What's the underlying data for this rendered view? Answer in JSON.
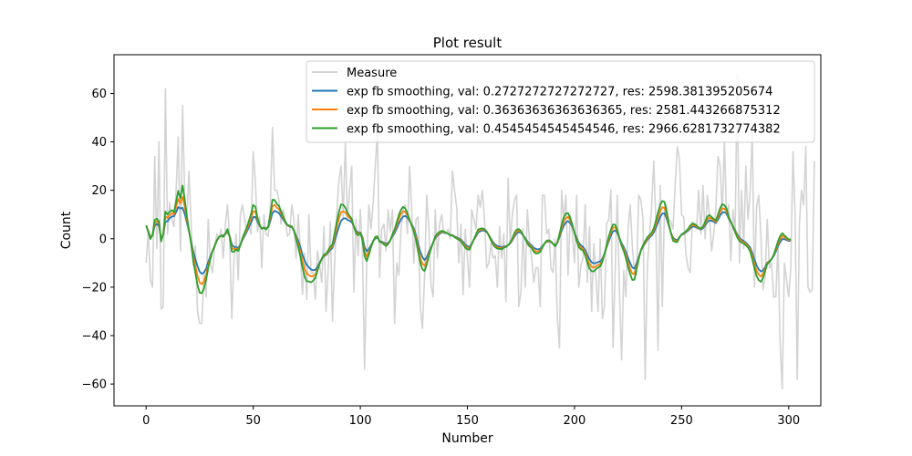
{
  "chart_data": {
    "type": "line",
    "title": "Plot result",
    "xlabel": "Number",
    "ylabel": "Count",
    "xlim": [
      -15,
      315
    ],
    "ylim": [
      -69,
      76
    ],
    "xticks": [
      0,
      50,
      100,
      150,
      200,
      250,
      300
    ],
    "yticks": [
      -60,
      -40,
      -20,
      0,
      20,
      40,
      60
    ],
    "grid": false,
    "legend_position": "top-right",
    "series": [
      {
        "name": "Measure",
        "color": "#d3d3d3",
        "y": [
          -10,
          3,
          -17,
          -20,
          34,
          -4,
          40,
          -29,
          -28,
          62,
          2,
          15,
          8,
          5,
          20,
          42,
          -5,
          55,
          18,
          8,
          28,
          6,
          -11,
          -3,
          -30,
          -35,
          -35,
          -14,
          -24,
          8,
          -10,
          -14,
          -4,
          2,
          0,
          4,
          -8,
          6,
          14,
          0,
          -33,
          -9,
          2,
          -17,
          10,
          14,
          8,
          3,
          5,
          2,
          36,
          24,
          3,
          9,
          -12,
          10,
          2,
          1,
          14,
          46,
          20,
          20,
          16,
          6,
          12,
          8,
          1,
          2,
          14,
          8,
          -8,
          10,
          -5,
          -23,
          -6,
          -25,
          10,
          -14,
          -14,
          -25,
          -5,
          -11,
          -18,
          5,
          -30,
          -13,
          7,
          -34,
          -10,
          10,
          24,
          30,
          8,
          40,
          8,
          20,
          30,
          -22,
          8,
          -7,
          12,
          -5,
          -54,
          -10,
          14,
          4,
          15,
          30,
          44,
          -16,
          4,
          6,
          -5,
          12,
          3,
          12,
          -35,
          -10,
          -15,
          4,
          12,
          14,
          2,
          30,
          12,
          -10,
          8,
          9,
          -28,
          -37,
          -16,
          18,
          5,
          -19,
          -24,
          12,
          -8,
          6,
          10,
          2,
          2,
          4,
          0,
          28,
          20,
          13,
          -10,
          6,
          -23,
          4,
          -8,
          -20,
          12,
          8,
          4,
          18,
          13,
          20,
          8,
          -12,
          -10,
          -2,
          -8,
          -7,
          -20,
          5,
          -8,
          2,
          -26,
          25,
          -2,
          10,
          16,
          18,
          -28,
          -22,
          4,
          -20,
          12,
          -1,
          -8,
          -18,
          -12,
          -12,
          -28,
          18,
          18,
          2,
          4,
          -12,
          -14,
          0,
          -33,
          -45,
          20,
          8,
          18,
          -15,
          10,
          2,
          -10,
          18,
          -20,
          -11,
          -8,
          14,
          -18,
          5,
          -30,
          -2,
          -16,
          -30,
          0,
          -33,
          -28,
          6,
          8,
          20,
          -45,
          -13,
          18,
          -22,
          -50,
          -13,
          -24,
          4,
          14,
          -3,
          -14,
          -15,
          18,
          16,
          8,
          -58,
          -12,
          1,
          13,
          32,
          6,
          -46,
          22,
          -28,
          12,
          14,
          8,
          7,
          4,
          22,
          38,
          33,
          10,
          9,
          -6,
          -12,
          -14,
          7,
          5,
          4,
          20,
          2,
          22,
          0,
          18,
          10,
          -5,
          2,
          12,
          34,
          30,
          10,
          40,
          10,
          14,
          -9,
          12,
          2,
          68,
          -10,
          20,
          -4,
          30,
          8,
          19,
          44,
          -20,
          13,
          18,
          2,
          -21,
          -16,
          8,
          -12,
          -10,
          -24,
          -24,
          -2,
          -43,
          -62,
          -10,
          -17,
          -24,
          -12,
          36,
          10,
          -58,
          6,
          20,
          14,
          38,
          -20,
          -22,
          -21,
          32
        ]
      },
      {
        "name": "exp fb smoothing, val: 0.2727272727272727, res: 2598.381395205674",
        "color": "#1f77b4",
        "y": [
          5.5,
          3.3,
          0.8,
          1.3,
          5.4,
          6.1,
          5.3,
          0.2,
          1.6,
          7.2,
          7.2,
          8.5,
          9.2,
          9.3,
          11.0,
          13.1,
          12.5,
          12.8,
          10.3,
          6.8,
          3.0,
          -1.3,
          -5.2,
          -8.4,
          -11.3,
          -13.6,
          -14.5,
          -13.9,
          -12.4,
          -9.6,
          -7.1,
          -5.1,
          -3.0,
          -0.9,
          0.6,
          1.3,
          1.4,
          2.0,
          2.7,
          1.2,
          -2.3,
          -3.4,
          -3.5,
          -3.8,
          -2.4,
          -0.5,
          1.2,
          2.9,
          4.8,
          6.6,
          8.9,
          9.1,
          7.0,
          5.3,
          4.4,
          4.6,
          4.3,
          4.8,
          7.3,
          10.7,
          11.6,
          11.1,
          10.6,
          9.3,
          8.0,
          6.6,
          5.5,
          5.0,
          4.7,
          3.5,
          1.3,
          -0.7,
          -3.4,
          -6.6,
          -9.0,
          -10.8,
          -11.8,
          -12.7,
          -13.0,
          -12.9,
          -11.5,
          -9.8,
          -8.4,
          -7.2,
          -6.8,
          -5.7,
          -4.6,
          -3.8,
          -1.0,
          2.0,
          4.9,
          7.4,
          8.3,
          8.5,
          7.8,
          7.4,
          6.8,
          5.1,
          3.4,
          2.5,
          2.6,
          0.7,
          -3.4,
          -5.2,
          -4.2,
          -2.6,
          -1.0,
          0.0,
          0.5,
          -0.9,
          -1.2,
          -1.6,
          -2.1,
          -1.7,
          -0.6,
          1.0,
          2.3,
          4.2,
          6.3,
          8.0,
          9.2,
          9.4,
          8.7,
          7.4,
          5.9,
          4.3,
          1.6,
          -2.1,
          -5.3,
          -7.6,
          -8.8,
          -7.7,
          -5.4,
          -3.5,
          -1.6,
          0.2,
          1.3,
          2.0,
          2.6,
          2.7,
          2.4,
          2.1,
          1.6,
          1.5,
          1.0,
          0.6,
          0.2,
          -0.4,
          -1.3,
          -2.4,
          -3.1,
          -3.4,
          -2.1,
          -0.5,
          1.0,
          2.5,
          3.1,
          3.4,
          3.3,
          2.7,
          1.6,
          0.1,
          -1.4,
          -2.4,
          -3.0,
          -3.2,
          -3.5,
          -3.2,
          -3.1,
          -2.7,
          -1.9,
          -0.7,
          1.0,
          2.2,
          2.7,
          2.5,
          1.4,
          0.3,
          -1.0,
          -2.1,
          -2.7,
          -3.7,
          -4.2,
          -4.4,
          -4.1,
          -3.1,
          -2.0,
          -1.3,
          -1.1,
          -1.4,
          -2.0,
          -2.7,
          -1.7,
          0.6,
          3.3,
          5.4,
          6.8,
          7.3,
          6.5,
          5.0,
          2.7,
          0.4,
          -1.6,
          -2.7,
          -3.4,
          -4.7,
          -6.8,
          -8.5,
          -9.7,
          -10.2,
          -10.0,
          -9.6,
          -9.4,
          -8.3,
          -6.1,
          -3.7,
          -1.0,
          1.3,
          3.1,
          3.4,
          2.4,
          0.3,
          -1.8,
          -3.4,
          -5.5,
          -7.9,
          -10.1,
          -11.9,
          -12.3,
          -10.1,
          -7.5,
          -4.9,
          -3.3,
          -1.9,
          -0.5,
          0.5,
          1.3,
          2.6,
          4.5,
          6.8,
          9.0,
          10.4,
          10.5,
          8.4,
          5.5,
          2.7,
          0.5,
          -0.3,
          -0.6,
          0.7,
          1.6,
          2.0,
          2.6,
          3.2,
          4.2,
          5.0,
          5.0,
          4.7,
          4.2,
          3.8,
          4.3,
          5.5,
          6.9,
          7.6,
          7.4,
          7.0,
          6.5,
          7.9,
          9.6,
          10.9,
          11.0,
          10.3,
          8.3,
          6.8,
          5.2,
          3.6,
          1.8,
          0.5,
          -0.4,
          -0.9,
          -1.6,
          -2.5,
          -3.6,
          -5.8,
          -8.5,
          -11.0,
          -12.6,
          -13.5,
          -13.1,
          -11.7,
          -9.8,
          -9.2,
          -8.5,
          -7.2,
          -5.3,
          -3.2,
          -1.4,
          -0.1,
          -0.2,
          -0.5,
          -0.9,
          -0.8
        ]
      },
      {
        "name": "exp fb smoothing, val: 0.36363636363636365, res: 2581.443266875312",
        "color": "#ff7f0e",
        "y": [
          5.5,
          3.1,
          0.4,
          1.5,
          6.5,
          7.2,
          6.2,
          -0.4,
          1.8,
          9.1,
          8.6,
          9.8,
          10.5,
          10.1,
          13.1,
          16.4,
          14.6,
          17.3,
          13.3,
          8.1,
          3.4,
          -1.6,
          -7.1,
          -11.3,
          -15.3,
          -18.1,
          -18.8,
          -17.5,
          -14.9,
          -11.0,
          -7.8,
          -5.2,
          -3.0,
          -0.8,
          0.6,
          1.3,
          1.1,
          2.0,
          3.4,
          1.0,
          -3.8,
          -4.4,
          -4.0,
          -4.5,
          -2.6,
          -0.1,
          1.9,
          3.8,
          6.1,
          8.4,
          11.4,
          11.2,
          7.9,
          5.6,
          4.3,
          4.6,
          4.1,
          5.0,
          8.9,
          13.4,
          14.0,
          12.9,
          12.2,
          10.4,
          8.6,
          6.9,
          5.6,
          5.2,
          5.0,
          3.4,
          0.6,
          -2.1,
          -5.4,
          -9.4,
          -12.5,
          -14.4,
          -15.0,
          -15.6,
          -15.4,
          -14.7,
          -12.5,
          -10.2,
          -8.4,
          -6.9,
          -6.6,
          -5.2,
          -3.9,
          -3.1,
          0.7,
          4.6,
          8.2,
          11.0,
          11.3,
          10.9,
          9.4,
          8.6,
          7.6,
          5.1,
          2.8,
          1.9,
          2.5,
          0.1,
          -5.4,
          -7.3,
          -5.5,
          -3.2,
          -1.0,
          0.4,
          0.8,
          -1.1,
          -1.4,
          -2.0,
          -2.6,
          -2.0,
          -0.6,
          1.5,
          3.1,
          5.6,
          8.2,
          10.2,
          11.4,
          11.1,
          9.7,
          7.7,
          5.6,
          3.6,
          0.5,
          -3.9,
          -7.8,
          -10.3,
          -11.2,
          -9.3,
          -6.3,
          -3.9,
          -1.6,
          0.6,
          1.7,
          2.4,
          3.0,
          2.9,
          2.5,
          2.1,
          1.5,
          1.4,
          0.8,
          0.3,
          -0.1,
          -0.8,
          -1.9,
          -3.1,
          -3.8,
          -4.0,
          -2.3,
          -0.4,
          1.4,
          3.2,
          3.7,
          3.9,
          3.7,
          2.9,
          1.5,
          -0.3,
          -2.0,
          -3.0,
          -3.6,
          -3.7,
          -4.0,
          -3.5,
          -3.3,
          -2.7,
          -1.7,
          -0.3,
          1.7,
          3.0,
          3.4,
          2.9,
          1.5,
          0.1,
          -1.5,
          -2.7,
          -3.3,
          -4.6,
          -5.2,
          -5.3,
          -4.8,
          -3.4,
          -2.0,
          -1.1,
          -0.9,
          -1.3,
          -2.1,
          -3.0,
          -1.7,
          1.3,
          4.6,
          7.1,
          8.6,
          9.0,
          7.6,
          5.5,
          2.5,
          -0.3,
          -2.6,
          -3.6,
          -4.2,
          -5.8,
          -8.4,
          -10.4,
          -11.6,
          -11.9,
          -11.4,
          -10.8,
          -10.5,
          -9.0,
          -6.2,
          -3.3,
          -0.1,
          2.6,
          4.6,
          4.7,
          3.1,
          0.3,
          -2.4,
          -4.3,
          -6.8,
          -9.8,
          -12.4,
          -14.5,
          -14.6,
          -11.4,
          -8.0,
          -4.8,
          -3.0,
          -1.5,
          -0.0,
          1.0,
          1.9,
          3.5,
          5.9,
          8.8,
          11.5,
          13.0,
          12.8,
          9.7,
          6.0,
          2.6,
          -0.1,
          -0.8,
          -1.0,
          0.6,
          1.7,
          2.2,
          2.9,
          3.6,
          4.8,
          5.7,
          5.5,
          5.1,
          4.4,
          4.0,
          4.7,
          6.3,
          8.0,
          8.7,
          8.2,
          7.6,
          7.0,
          8.9,
          11.1,
          12.6,
          12.4,
          11.3,
          8.7,
          6.9,
          5.1,
          3.2,
          1.2,
          -0.1,
          -1.0,
          -1.4,
          -2.1,
          -3.1,
          -4.4,
          -7.1,
          -10.3,
          -13.1,
          -14.8,
          -15.6,
          -14.6,
          -12.5,
          -10.1,
          -9.4,
          -8.5,
          -6.9,
          -4.6,
          -2.2,
          -0.2,
          1.1,
          0.6,
          -0.0,
          -0.6,
          -0.5
        ]
      },
      {
        "name": "exp fb smoothing, val: 0.4545454545454546, res: 2966.6281732774382",
        "color": "#2ca02c",
        "y": [
          5.5,
          2.8,
          -0.1,
          1.7,
          7.8,
          8.3,
          7.1,
          -1.1,
          2.1,
          11.2,
          10.0,
          11.2,
          11.8,
          11.0,
          15.4,
          19.8,
          16.7,
          22.0,
          16.2,
          9.4,
          3.7,
          -2.1,
          -9.1,
          -14.2,
          -19.1,
          -22.3,
          -22.5,
          -20.5,
          -16.9,
          -12.1,
          -8.3,
          -5.1,
          -2.9,
          -0.6,
          0.7,
          1.3,
          0.8,
          2.1,
          4.0,
          0.7,
          -5.3,
          -5.4,
          -4.4,
          -5.1,
          -2.7,
          0.3,
          2.6,
          4.7,
          7.4,
          10.2,
          14.0,
          13.2,
          8.7,
          5.8,
          4.1,
          4.6,
          3.8,
          5.1,
          10.3,
          16.1,
          16.0,
          14.4,
          13.6,
          11.4,
          9.1,
          7.1,
          5.7,
          5.4,
          5.2,
          3.3,
          -0.1,
          -3.4,
          -7.3,
          -12.0,
          -15.7,
          -17.5,
          -17.7,
          -18.0,
          -17.3,
          -16.2,
          -13.2,
          -10.4,
          -8.2,
          -6.5,
          -6.3,
          -4.7,
          -3.2,
          -2.4,
          2.3,
          6.9,
          11.1,
          14.2,
          14.0,
          12.9,
          10.8,
          9.5,
          8.2,
          5.0,
          2.2,
          1.4,
          2.4,
          -0.5,
          -7.2,
          -9.2,
          -6.6,
          -3.6,
          -0.9,
          0.8,
          1.0,
          -1.3,
          -1.5,
          -2.3,
          -3.0,
          -2.2,
          -0.6,
          1.9,
          3.8,
          6.8,
          9.8,
          12.0,
          13.2,
          12.5,
          10.6,
          7.9,
          5.3,
          2.9,
          -0.6,
          -5.4,
          -9.9,
          -12.6,
          -13.3,
          -10.8,
          -7.0,
          -4.2,
          -1.5,
          1.0,
          2.1,
          2.8,
          3.3,
          3.0,
          2.5,
          2.1,
          1.4,
          1.3,
          0.6,
          0.1,
          -0.4,
          -1.1,
          -2.4,
          -3.7,
          -4.4,
          -4.5,
          -2.4,
          -0.2,
          1.8,
          3.8,
          4.2,
          4.3,
          3.9,
          3.0,
          1.3,
          -0.7,
          -2.5,
          -3.5,
          -4.1,
          -4.1,
          -4.4,
          -3.7,
          -3.4,
          -2.7,
          -1.5,
          0.2,
          2.5,
          3.8,
          4.0,
          3.2,
          1.5,
          -0.1,
          -2.0,
          -3.2,
          -3.8,
          -5.4,
          -6.1,
          -6.0,
          -5.4,
          -3.6,
          -1.9,
          -0.8,
          -0.6,
          -1.1,
          -2.1,
          -3.2,
          -1.6,
          2.0,
          5.8,
          8.8,
          10.4,
          10.6,
          8.6,
          5.9,
          2.3,
          -0.9,
          -3.5,
          -4.4,
          -4.9,
          -6.8,
          -9.9,
          -12.2,
          -13.4,
          -13.5,
          -12.6,
          -11.9,
          -11.4,
          -9.6,
          -6.2,
          -2.7,
          0.9,
          3.8,
          5.9,
          5.8,
          3.7,
          0.3,
          -2.9,
          -5.1,
          -8.0,
          -11.6,
          -14.6,
          -17.0,
          -16.9,
          -12.6,
          -8.4,
          -4.7,
          -2.6,
          -1.0,
          0.6,
          1.5,
          2.4,
          4.3,
          7.3,
          10.8,
          14.0,
          15.6,
          15.2,
          11.1,
          6.4,
          2.3,
          -0.8,
          -1.3,
          -1.4,
          0.5,
          1.8,
          2.4,
          3.1,
          4.0,
          5.4,
          6.3,
          6.1,
          5.5,
          4.6,
          4.1,
          5.1,
          7.0,
          9.1,
          9.8,
          9.0,
          8.2,
          7.5,
          10.0,
          12.6,
          14.3,
          13.9,
          12.4,
          9.1,
          6.9,
          4.9,
          2.8,
          0.5,
          -0.8,
          -1.6,
          -1.9,
          -2.7,
          -3.6,
          -5.2,
          -8.4,
          -12.1,
          -15.3,
          -17.1,
          -17.8,
          -16.2,
          -13.4,
          -10.4,
          -9.7,
          -8.5,
          -6.6,
          -3.9,
          -1.1,
          1.1,
          2.3,
          1.4,
          0.5,
          -0.3,
          -0.2
        ]
      }
    ]
  }
}
